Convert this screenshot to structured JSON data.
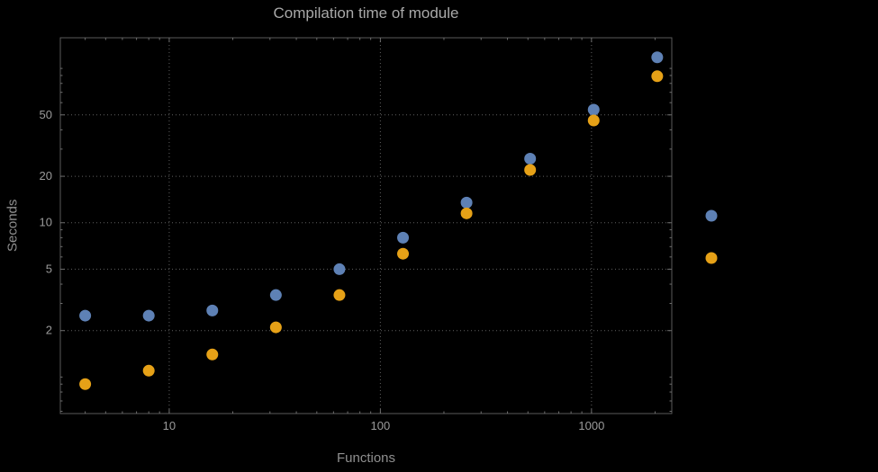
{
  "title": "Compilation time of module",
  "chart_data": {
    "type": "scatter",
    "title": "Compilation time of module",
    "xlabel": "Functions",
    "ylabel": "Seconds",
    "x_scale": "log",
    "y_scale": "log",
    "grid": "dotted",
    "background": "#000000",
    "x_ticks": [
      10,
      100,
      1000
    ],
    "y_ticks": [
      2,
      5,
      10,
      20,
      50
    ],
    "x_range": [
      3.05,
      2400
    ],
    "y_range": [
      0.58,
      158
    ],
    "x": [
      4,
      8,
      16,
      32,
      64,
      128,
      256,
      512,
      1024,
      2048
    ],
    "series": [
      {
        "name": "series-1",
        "color": "#5e81b5",
        "values": [
          2.5,
          2.5,
          2.7,
          3.4,
          5.0,
          8.0,
          13.5,
          26,
          54,
          118
        ]
      },
      {
        "name": "series-2",
        "color": "#e6a117",
        "values": [
          0.9,
          1.1,
          1.4,
          2.1,
          3.4,
          6.3,
          11.5,
          22,
          46,
          89
        ]
      }
    ],
    "legend": {
      "position": "right-center",
      "labels_visible": false,
      "markers": [
        {
          "series": "series-1",
          "color": "#5e81b5"
        },
        {
          "series": "series-2",
          "color": "#e6a117"
        }
      ]
    }
  },
  "colors": {
    "frame": "#5a5a5a",
    "gridline": "#606060",
    "tick": "#6e6e6e",
    "tick_label": "#9b9b9b",
    "title_text": "#a9a9a9",
    "axis_label_text": "#8f8f8f"
  }
}
